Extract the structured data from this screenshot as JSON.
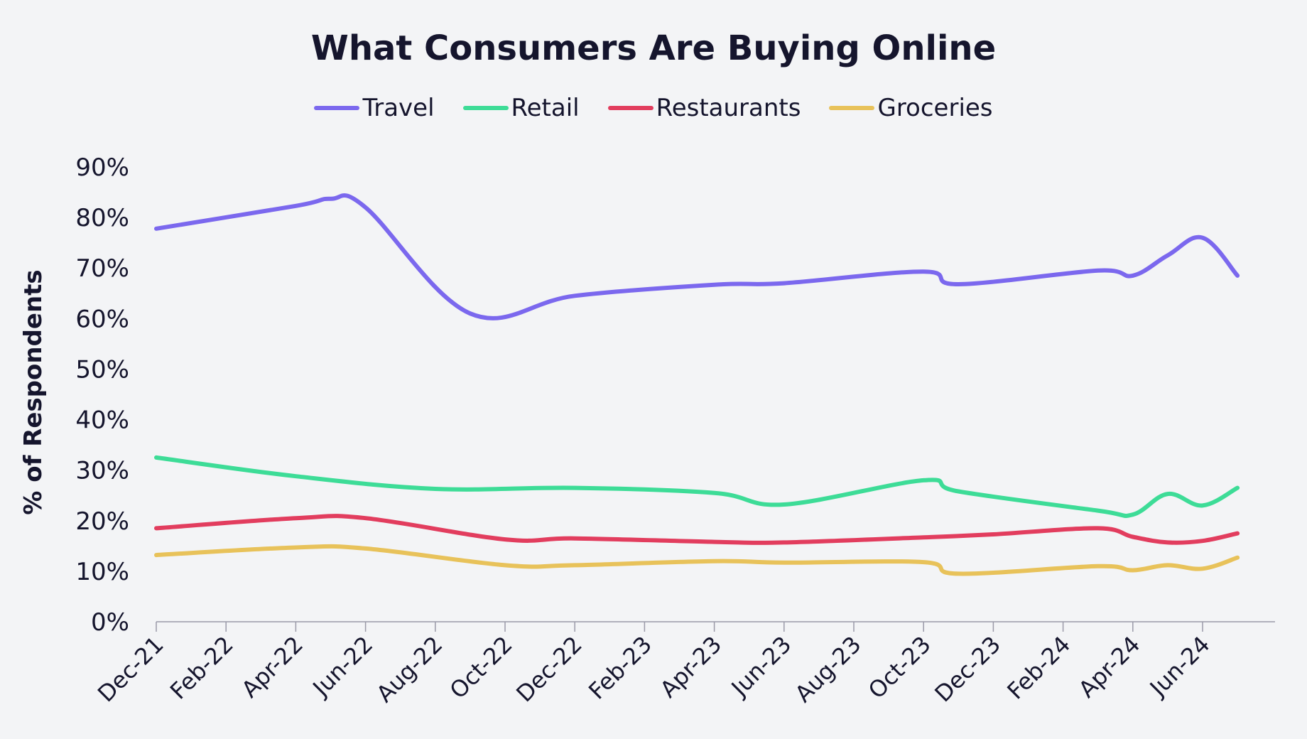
{
  "chart_data": {
    "type": "line",
    "title": "What Consumers Are Buying Online",
    "xlabel": "",
    "ylabel": "% of Respondents",
    "ylim": [
      0,
      90
    ],
    "yticks": [
      "0%",
      "10%",
      "20%",
      "30%",
      "40%",
      "50%",
      "60%",
      "70%",
      "80%",
      "90%"
    ],
    "grid": false,
    "legend_position": "top-center",
    "x_tick_labels": [
      "Dec-21",
      "Feb-22",
      "Apr-22",
      "Jun-22",
      "Aug-22",
      "Oct-22",
      "Dec-22",
      "Feb-23",
      "Apr-23",
      "Jun-23",
      "Aug-23",
      "Oct-23",
      "Dec-23",
      "Feb-24",
      "Apr-24",
      "Jun-24"
    ],
    "series": [
      {
        "name": "Travel",
        "color": "#7b68ee",
        "points": [
          {
            "x": "Dec-21",
            "y": 77.8
          },
          {
            "x": "Apr-22",
            "y": 82.3
          },
          {
            "x": "May-22",
            "y": 83.7
          },
          {
            "x": "Jun-22",
            "y": 82.0
          },
          {
            "x": "Sep-22",
            "y": 61.0
          },
          {
            "x": "Dec-22",
            "y": 64.5
          },
          {
            "x": "Apr-23",
            "y": 66.7
          },
          {
            "x": "Jun-23",
            "y": 67.0
          },
          {
            "x": "Oct-23",
            "y": 69.3
          },
          {
            "x": "Nov-23",
            "y": 66.8
          },
          {
            "x": "Mar-24",
            "y": 69.5
          },
          {
            "x": "Apr-24",
            "y": 68.5
          },
          {
            "x": "May-24",
            "y": 72.5
          },
          {
            "x": "Jun-24",
            "y": 76.0
          },
          {
            "x": "Jul-24",
            "y": 68.5
          }
        ]
      },
      {
        "name": "Retail",
        "color": "#3ddc97",
        "points": [
          {
            "x": "Dec-21",
            "y": 32.5
          },
          {
            "x": "Apr-22",
            "y": 28.8
          },
          {
            "x": "Aug-22",
            "y": 26.3
          },
          {
            "x": "Dec-22",
            "y": 26.5
          },
          {
            "x": "Apr-23",
            "y": 25.5
          },
          {
            "x": "Jun-23",
            "y": 23.2
          },
          {
            "x": "Oct-23",
            "y": 28.0
          },
          {
            "x": "Nov-23",
            "y": 25.8
          },
          {
            "x": "Mar-24",
            "y": 22.0
          },
          {
            "x": "Apr-24",
            "y": 21.2
          },
          {
            "x": "May-24",
            "y": 25.3
          },
          {
            "x": "Jun-24",
            "y": 23.0
          },
          {
            "x": "Jul-24",
            "y": 26.5
          }
        ]
      },
      {
        "name": "Restaurants",
        "color": "#e23d5e",
        "points": [
          {
            "x": "Dec-21",
            "y": 18.5
          },
          {
            "x": "Apr-22",
            "y": 20.5
          },
          {
            "x": "Jun-22",
            "y": 20.5
          },
          {
            "x": "Oct-22",
            "y": 16.3
          },
          {
            "x": "Dec-22",
            "y": 16.5
          },
          {
            "x": "Apr-23",
            "y": 15.8
          },
          {
            "x": "Jun-23",
            "y": 15.7
          },
          {
            "x": "Oct-23",
            "y": 16.7
          },
          {
            "x": "Dec-23",
            "y": 17.3
          },
          {
            "x": "Mar-24",
            "y": 18.5
          },
          {
            "x": "Apr-24",
            "y": 16.8
          },
          {
            "x": "May-24",
            "y": 15.7
          },
          {
            "x": "Jun-24",
            "y": 16.0
          },
          {
            "x": "Jul-24",
            "y": 17.5
          }
        ]
      },
      {
        "name": "Groceries",
        "color": "#e8c25a",
        "points": [
          {
            "x": "Dec-21",
            "y": 13.2
          },
          {
            "x": "Apr-22",
            "y": 14.7
          },
          {
            "x": "Jun-22",
            "y": 14.5
          },
          {
            "x": "Oct-22",
            "y": 11.2
          },
          {
            "x": "Dec-22",
            "y": 11.2
          },
          {
            "x": "Apr-23",
            "y": 12.0
          },
          {
            "x": "Jun-23",
            "y": 11.7
          },
          {
            "x": "Oct-23",
            "y": 11.8
          },
          {
            "x": "Nov-23",
            "y": 9.5
          },
          {
            "x": "Mar-24",
            "y": 11.0
          },
          {
            "x": "Apr-24",
            "y": 10.2
          },
          {
            "x": "May-24",
            "y": 11.2
          },
          {
            "x": "Jun-24",
            "y": 10.5
          },
          {
            "x": "Jul-24",
            "y": 12.7
          }
        ]
      }
    ]
  }
}
